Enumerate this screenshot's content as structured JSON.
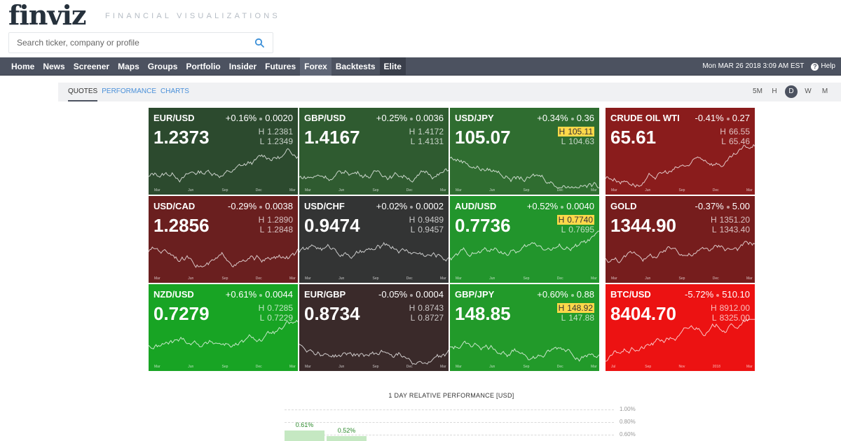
{
  "header": {
    "logo": "finviz",
    "tagline": "FINANCIAL VISUALIZATIONS",
    "search_placeholder": "Search ticker, company or profile"
  },
  "nav": {
    "items": [
      "Home",
      "News",
      "Screener",
      "Maps",
      "Groups",
      "Portfolio",
      "Insider",
      "Futures",
      "Forex",
      "Backtests",
      "Elite"
    ],
    "active": "Forex",
    "datetime": "Mon MAR 26 2018 3:09 AM EST",
    "help": "Help"
  },
  "subtabs": [
    "QUOTES",
    "PERFORMANCE",
    "CHARTS"
  ],
  "timeframes": [
    "5M",
    "H",
    "D",
    "W",
    "M"
  ],
  "active_timeframe": "D",
  "tiles": [
    {
      "sym": "EUR/USD",
      "pct": "+0.16%",
      "abs": "0.0020",
      "price": "1.2373",
      "h": "1.2381",
      "l": "1.2349",
      "bg": "#2c4a2e",
      "h_hot": false,
      "l_hot": false,
      "trend": 0.6,
      "months": [
        "Mar",
        "Jun",
        "Sep",
        "Dec",
        "Mar"
      ]
    },
    {
      "sym": "GBP/USD",
      "pct": "+0.25%",
      "abs": "0.0036",
      "price": "1.4167",
      "h": "1.4172",
      "l": "1.4131",
      "bg": "#2f5b30",
      "h_hot": false,
      "l_hot": false,
      "trend": 0.6,
      "months": [
        "Mar",
        "Jun",
        "Sep",
        "Dec",
        "Mar"
      ]
    },
    {
      "sym": "USD/JPY",
      "pct": "+0.34%",
      "abs": "0.36",
      "price": "105.07",
      "h": "105.11",
      "l": "104.63",
      "bg": "#2f6d30",
      "h_hot": true,
      "l_hot": false,
      "trend": -0.4,
      "months": [
        "Mar",
        "Jun",
        "Sep",
        "Dec",
        "Mar"
      ]
    },
    {
      "sym": "CRUDE OIL WTI",
      "pct": "-0.41%",
      "abs": "0.27",
      "price": "65.61",
      "h": "66.55",
      "l": "65.46",
      "bg": "#8a1c1c",
      "h_hot": false,
      "l_hot": false,
      "trend": 0.6,
      "months": [
        "Mar",
        "Jun",
        "Sep",
        "Dec",
        "Mar"
      ]
    },
    {
      "sym": "USD/CAD",
      "pct": "-0.29%",
      "abs": "0.0038",
      "price": "1.2856",
      "h": "1.2890",
      "l": "1.2848",
      "bg": "#6a1f1f",
      "h_hot": false,
      "l_hot": false,
      "trend": -0.2,
      "months": [
        "Mar",
        "Jun",
        "Sep",
        "Dec",
        "Mar"
      ]
    },
    {
      "sym": "USD/CHF",
      "pct": "+0.02%",
      "abs": "0.0002",
      "price": "0.9474",
      "h": "0.9489",
      "l": "0.9457",
      "bg": "#333434",
      "h_hot": false,
      "l_hot": false,
      "trend": -0.2,
      "months": [
        "Mar",
        "Jun",
        "Sep",
        "Dec",
        "Mar"
      ]
    },
    {
      "sym": "AUD/USD",
      "pct": "+0.52%",
      "abs": "0.0040",
      "price": "0.7736",
      "h": "0.7740",
      "l": "0.7695",
      "bg": "#22952c",
      "h_hot": true,
      "l_hot": false,
      "trend": 0.3,
      "months": [
        "Mar",
        "Jun",
        "Sep",
        "Dec",
        "Mar"
      ]
    },
    {
      "sym": "GOLD",
      "pct": "-0.37%",
      "abs": "5.00",
      "price": "1344.90",
      "h": "1351.20",
      "l": "1343.40",
      "bg": "#761d1d",
      "h_hot": false,
      "l_hot": false,
      "trend": 0.3,
      "months": [
        "Mar",
        "Jun",
        "Sep",
        "Dec",
        "Mar"
      ]
    },
    {
      "sym": "NZD/USD",
      "pct": "+0.61%",
      "abs": "0.0044",
      "price": "0.7279",
      "h": "0.7285",
      "l": "0.7229",
      "bg": "#18a424",
      "h_hot": false,
      "l_hot": false,
      "trend": 0.2,
      "months": [
        "Mar",
        "Jun",
        "Sep",
        "Dec",
        "Mar"
      ]
    },
    {
      "sym": "EUR/GBP",
      "pct": "-0.05%",
      "abs": "0.0004",
      "price": "0.8734",
      "h": "0.8743",
      "l": "0.8727",
      "bg": "#3a2a2a",
      "h_hot": false,
      "l_hot": false,
      "trend": 0.1,
      "months": [
        "Mar",
        "Jun",
        "Sep",
        "Dec",
        "Mar"
      ]
    },
    {
      "sym": "GBP/JPY",
      "pct": "+0.60%",
      "abs": "0.88",
      "price": "148.85",
      "h": "148.92",
      "l": "147.88",
      "bg": "#229a2a",
      "h_hot": true,
      "l_hot": false,
      "trend": 0.2,
      "months": [
        "Mar",
        "Jun",
        "Sep",
        "Dec",
        "Mar"
      ]
    },
    {
      "sym": "BTC/USD",
      "pct": "-5.72%",
      "abs": "510.10",
      "price": "8404.70",
      "h": "8912.00",
      "l": "8325.00",
      "bg": "#ec1212",
      "h_hot": false,
      "l_hot": false,
      "trend": 0.9,
      "months": [
        "Jul",
        "Sep",
        "Nov",
        "2018",
        "Mar"
      ]
    }
  ],
  "performance": {
    "title": "1 DAY RELATIVE PERFORMANCE  [USD]",
    "gridlines": [
      "1.00%",
      "0.80%",
      "0.60%"
    ],
    "bars": [
      {
        "label": "0.61%",
        "value": 0.61
      },
      {
        "label": "0.52%",
        "value": 0.52
      }
    ]
  }
}
